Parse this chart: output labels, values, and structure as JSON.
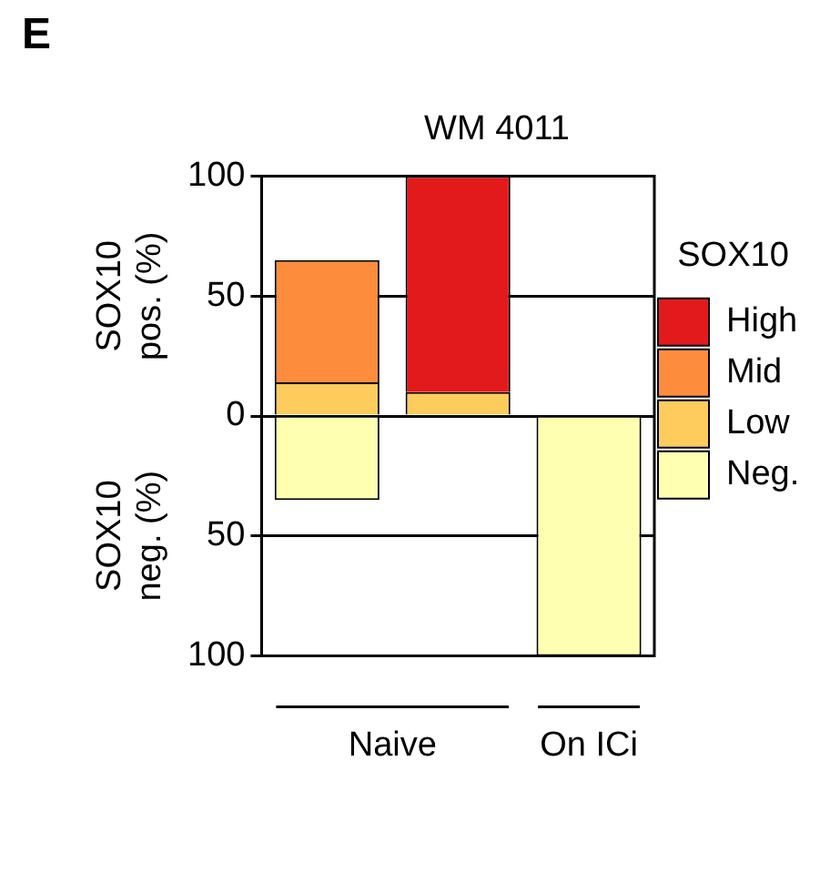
{
  "chart_data": {
    "type": "bar",
    "title": "WM 4011",
    "ylabel": "SOX10 pos. (%)",
    "legend_title": "SOX10",
    "stacked": true,
    "categories": [
      null,
      null,
      null
    ],
    "series": [
      {
        "name": "Neg.",
        "color": "#ffffb2",
        "values": [
          -35,
          null,
          -100
        ]
      },
      {
        "name": "Low",
        "color": "#fecc5c",
        "values": [
          14,
          10,
          null
        ]
      },
      {
        "name": "Mid",
        "color": "#fd8d3c",
        "values": [
          51,
          null,
          null
        ]
      },
      {
        "name": "High",
        "color": "#e31a1c",
        "values": [
          null,
          90,
          null
        ]
      }
    ],
    "ylim": [
      -100,
      100
    ],
    "yticks": [
      {
        "value": -100,
        "label": "100"
      },
      {
        "value": -50,
        "label": "50"
      },
      0,
      50,
      100
    ],
    "grid": "y",
    "legend": "right",
    "annotations": [
      "E",
      "SOX10 neg. (%)",
      "Naive",
      "On ICi"
    ]
  }
}
